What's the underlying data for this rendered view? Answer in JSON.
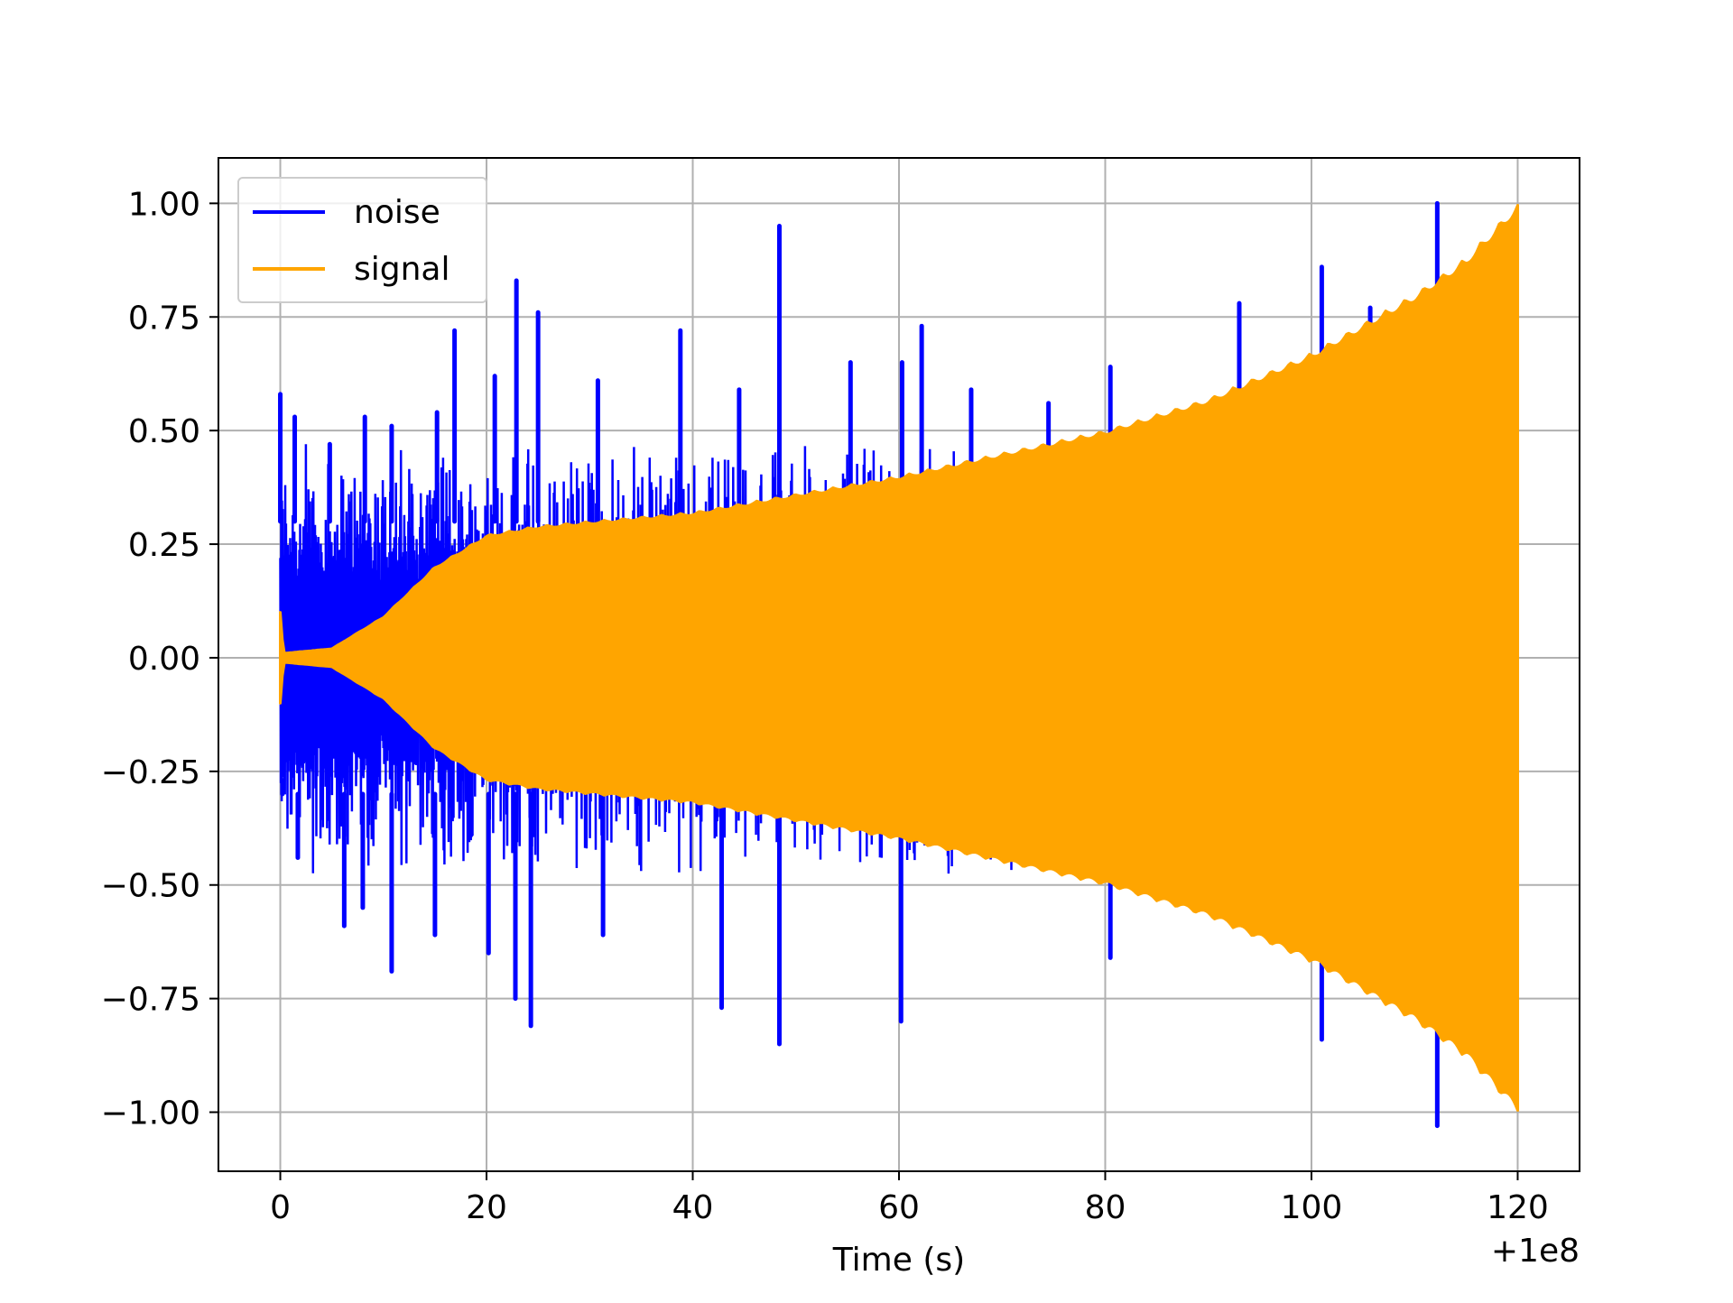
{
  "chart_data": {
    "type": "line",
    "title": "",
    "xlabel": "Time (s)",
    "ylabel": "",
    "x_offset_label": "+1e8",
    "xlim": [
      -5.999,
      126
    ],
    "ylim": [
      -1.13,
      1.1
    ],
    "x_ticks": [
      0,
      20,
      40,
      60,
      80,
      100,
      120
    ],
    "x_tick_labels": [
      "0",
      "20",
      "40",
      "60",
      "80",
      "100",
      "120"
    ],
    "y_ticks": [
      1.0,
      0.75,
      0.5,
      0.25,
      0.0,
      -0.25,
      -0.5,
      -0.75,
      -1.0
    ],
    "y_tick_labels": [
      "1.00",
      "0.75",
      "0.50",
      "0.25",
      "0.00",
      "−0.25",
      "−0.50",
      "−0.75",
      "−1.00"
    ],
    "grid": true,
    "legend": {
      "position": "top-left",
      "entries": [
        "noise",
        "signal"
      ]
    },
    "series": [
      {
        "name": "noise",
        "color": "#0000ff",
        "description_x_range": [
          0,
          112.2
        ],
        "peak_points": [
          {
            "x": 0.0,
            "y": 0.58
          },
          {
            "x": 1.4,
            "y": 0.53
          },
          {
            "x": 4.8,
            "y": 0.47
          },
          {
            "x": 8.2,
            "y": 0.53
          },
          {
            "x": 10.8,
            "y": 0.51
          },
          {
            "x": 15.2,
            "y": 0.54
          },
          {
            "x": 16.9,
            "y": 0.72
          },
          {
            "x": 20.8,
            "y": 0.62
          },
          {
            "x": 22.9,
            "y": 0.83
          },
          {
            "x": 25.0,
            "y": 0.76
          },
          {
            "x": 30.8,
            "y": 0.61
          },
          {
            "x": 38.8,
            "y": 0.72
          },
          {
            "x": 44.5,
            "y": 0.59
          },
          {
            "x": 48.4,
            "y": 0.95
          },
          {
            "x": 55.3,
            "y": 0.65
          },
          {
            "x": 60.3,
            "y": 0.65
          },
          {
            "x": 62.2,
            "y": 0.73
          },
          {
            "x": 67.0,
            "y": 0.59
          },
          {
            "x": 74.5,
            "y": 0.56
          },
          {
            "x": 80.5,
            "y": 0.64
          },
          {
            "x": 93.0,
            "y": 0.78
          },
          {
            "x": 101.0,
            "y": 0.86
          },
          {
            "x": 105.7,
            "y": 0.77
          },
          {
            "x": 112.2,
            "y": 1.0
          }
        ],
        "trough_points": [
          {
            "x": 0.2,
            "y": -0.27
          },
          {
            "x": 1.7,
            "y": -0.44
          },
          {
            "x": 6.2,
            "y": -0.59
          },
          {
            "x": 8.0,
            "y": -0.55
          },
          {
            "x": 10.8,
            "y": -0.69
          },
          {
            "x": 15.0,
            "y": -0.61
          },
          {
            "x": 20.2,
            "y": -0.65
          },
          {
            "x": 22.8,
            "y": -0.75
          },
          {
            "x": 24.3,
            "y": -0.81
          },
          {
            "x": 31.3,
            "y": -0.61
          },
          {
            "x": 42.8,
            "y": -0.77
          },
          {
            "x": 48.4,
            "y": -0.85
          },
          {
            "x": 60.2,
            "y": -0.8
          },
          {
            "x": 75.0,
            "y": -0.46
          },
          {
            "x": 80.5,
            "y": -0.66
          },
          {
            "x": 101.0,
            "y": -0.84
          },
          {
            "x": 112.2,
            "y": -1.03
          }
        ]
      },
      {
        "name": "signal",
        "color": "#ffa500",
        "x_range": [
          0,
          120
        ],
        "envelope": [
          {
            "x": 0,
            "amplitude": 0.1
          },
          {
            "x": 0.3,
            "amplitude": 0.01
          },
          {
            "x": 5,
            "amplitude": 0.02
          },
          {
            "x": 10,
            "amplitude": 0.09
          },
          {
            "x": 15,
            "amplitude": 0.2
          },
          {
            "x": 20,
            "amplitude": 0.27
          },
          {
            "x": 25,
            "amplitude": 0.29
          },
          {
            "x": 30,
            "amplitude": 0.3
          },
          {
            "x": 40,
            "amplitude": 0.32
          },
          {
            "x": 50,
            "amplitude": 0.36
          },
          {
            "x": 60,
            "amplitude": 0.4
          },
          {
            "x": 70,
            "amplitude": 0.45
          },
          {
            "x": 80,
            "amplitude": 0.5
          },
          {
            "x": 90,
            "amplitude": 0.57
          },
          {
            "x": 100,
            "amplitude": 0.67
          },
          {
            "x": 110,
            "amplitude": 0.8
          },
          {
            "x": 115,
            "amplitude": 0.88
          },
          {
            "x": 120,
            "amplitude": 1.0
          }
        ]
      }
    ]
  }
}
